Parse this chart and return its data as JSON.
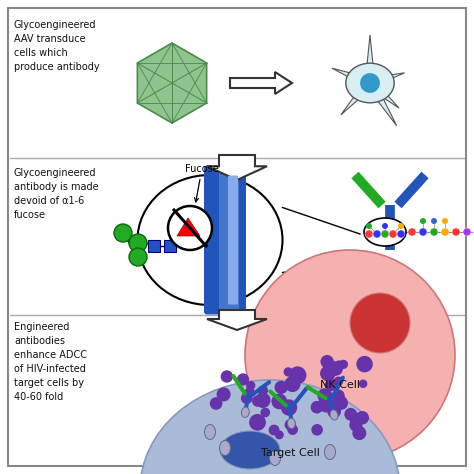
{
  "bg_color": "#ffffff",
  "border_color": "#888888",
  "panel1_text": "Glycoengineered\nAAV transduce\ncells which\nproduce antibody",
  "panel2_text": "Glycoengineered\nantibody is made\ndevoid of α1-6\nfucose",
  "panel3_text": "Engineered\nantibodies\nenhance ADCC\nof HIV-infected\ntarget cells by\n40-60 fold",
  "fucose_label": "Fucose",
  "nk_cell_label": "NK Cell",
  "target_cell_label": "Target Cell",
  "aav_color": "#8ec48e",
  "aav_edge": "#4a8a4a",
  "neuron_fill": "#d8eef5",
  "neuron_edge": "#555555",
  "neuron_nucleus": "#3399cc",
  "arrow_fill": "#ffffff",
  "arrow_edge": "#333333",
  "capsule_blue_dark": "#2255bb",
  "capsule_blue_mid": "#4477cc",
  "capsule_blue_light": "#88aaee",
  "glycan_green": "#22aa22",
  "glycan_blue": "#2255bb",
  "nk_cell_color": "#f5b0b0",
  "nk_cell_edge": "#cc7777",
  "nk_nucleus_color": "#cc3333",
  "target_cell_color": "#aabbd8",
  "target_cell_edge": "#8899bb",
  "target_nucleus_color": "#3355aa",
  "antibody_green": "#22aa22",
  "antibody_blue": "#2255bb",
  "purple_dot": "#6633aa",
  "text_color": "#111111",
  "divider_color": "#aaaaaa",
  "fcr_color": "#aaaacc",
  "fcr_edge": "#666688"
}
